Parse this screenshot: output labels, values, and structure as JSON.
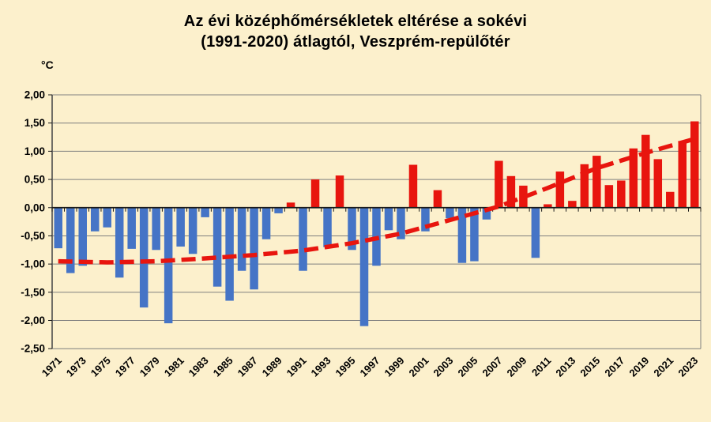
{
  "window": {
    "background_color": "#FCF0CC"
  },
  "title": {
    "line1": "Az évi középhőmérsékletek eltérése a sokévi",
    "line2": "(1991-2020) átlagtól, Veszprém-repülőtér"
  },
  "chart_data": {
    "type": "bar",
    "title": "Az évi középhőmérsékletek eltérése a sokévi (1991-2020) átlagtól, Veszprém-repülőtér",
    "xlabel": "",
    "ylabel": "°C",
    "ylim": [
      -2.5,
      2.0
    ],
    "ytick_step": 0.5,
    "grid": true,
    "legend": false,
    "decimal_separator": ",",
    "y_tick_labels": [
      "2,00",
      "1,50",
      "1,00",
      "0,50",
      "0,00",
      "-0,50",
      "-1,00",
      "-1,50",
      "-2,00",
      "-2,50"
    ],
    "x_tick_labels": [
      "1971",
      "1973",
      "1975",
      "1977",
      "1979",
      "1981",
      "1983",
      "1985",
      "1987",
      "1989",
      "1991",
      "1993",
      "1995",
      "1997",
      "1999",
      "2001",
      "2003",
      "2005",
      "2007",
      "2009",
      "2011",
      "2013",
      "2015",
      "2017",
      "2019",
      "2021",
      "2023"
    ],
    "categories": [
      1971,
      1972,
      1973,
      1974,
      1975,
      1976,
      1977,
      1978,
      1979,
      1980,
      1981,
      1982,
      1983,
      1984,
      1985,
      1986,
      1987,
      1988,
      1989,
      1990,
      1991,
      1992,
      1993,
      1994,
      1995,
      1996,
      1997,
      1998,
      1999,
      2000,
      2001,
      2002,
      2003,
      2004,
      2005,
      2006,
      2007,
      2008,
      2009,
      2010,
      2011,
      2012,
      2013,
      2014,
      2015,
      2016,
      2017,
      2018,
      2019,
      2020,
      2021,
      2022,
      2023
    ],
    "values": [
      -0.72,
      -1.16,
      -1.03,
      -0.42,
      -0.35,
      -1.24,
      -0.73,
      -1.77,
      -0.75,
      -2.05,
      -0.69,
      -0.82,
      -0.17,
      -1.4,
      -1.65,
      -1.12,
      -1.45,
      -0.56,
      -0.1,
      0.09,
      -1.12,
      0.5,
      -0.7,
      0.57,
      -0.75,
      -2.1,
      -1.03,
      -0.4,
      -0.56,
      0.76,
      -0.42,
      0.31,
      -0.19,
      -0.98,
      -0.95,
      -0.21,
      0.83,
      0.56,
      0.39,
      -0.89,
      0.06,
      0.64,
      0.12,
      0.77,
      0.92,
      0.4,
      0.48,
      1.05,
      1.29,
      0.86,
      0.28,
      1.18,
      1.53
    ],
    "bar_color_positive": "#E8150E",
    "bar_color_negative": "#4574C6",
    "trend_line": {
      "style": "dashed",
      "color": "#E8150E",
      "points": [
        {
          "year": 1971,
          "value": -0.95
        },
        {
          "year": 1975,
          "value": -0.97
        },
        {
          "year": 1979,
          "value": -0.95
        },
        {
          "year": 1983,
          "value": -0.9
        },
        {
          "year": 1987,
          "value": -0.84
        },
        {
          "year": 1991,
          "value": -0.76
        },
        {
          "year": 1995,
          "value": -0.63
        },
        {
          "year": 1999,
          "value": -0.46
        },
        {
          "year": 2003,
          "value": -0.22
        },
        {
          "year": 2007,
          "value": 0.02
        },
        {
          "year": 2011,
          "value": 0.35
        },
        {
          "year": 2015,
          "value": 0.7
        },
        {
          "year": 2019,
          "value": 0.97
        },
        {
          "year": 2023,
          "value": 1.22
        }
      ]
    },
    "colors": {
      "background": "#FCF0CC",
      "gridline": "#7F7F7F",
      "axis": "#1A1A1A",
      "text": "#000000"
    }
  }
}
